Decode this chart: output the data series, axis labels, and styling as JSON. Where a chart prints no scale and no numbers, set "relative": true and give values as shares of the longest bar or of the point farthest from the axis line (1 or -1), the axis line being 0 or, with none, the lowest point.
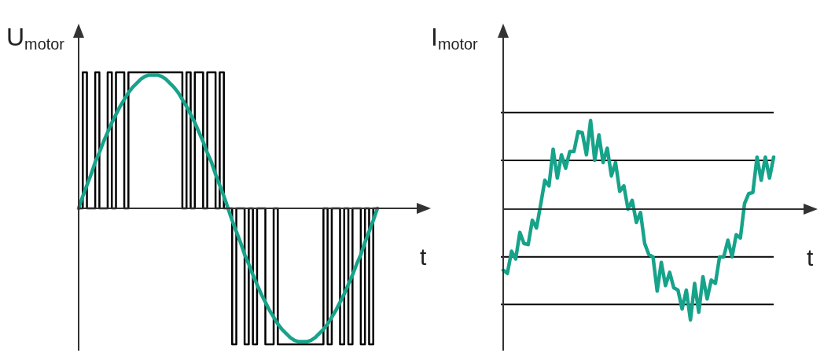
{
  "chart_data": [
    {
      "type": "line",
      "relative": true,
      "ylabel": "U$_{motor}$",
      "xlabel": "t",
      "categories": [
        null,
        null,
        null,
        null,
        null,
        null,
        null,
        null,
        null,
        null,
        null,
        null,
        null,
        null,
        null,
        null,
        null,
        null,
        null,
        null,
        null,
        null,
        null,
        null,
        null,
        null,
        null,
        null,
        null,
        null,
        null,
        null,
        null,
        null,
        null,
        null,
        null,
        null,
        null,
        null,
        null,
        null,
        null,
        null,
        null,
        null,
        null,
        null,
        null,
        null,
        null,
        null,
        null,
        null,
        null,
        null,
        null,
        null,
        null,
        null,
        null,
        null,
        null,
        null,
        null,
        null,
        null,
        null,
        null,
        null,
        null,
        null,
        null
      ],
      "series": [
        {
          "type": "step",
          "color": "#000000",
          "values": [
            0,
            1,
            0,
            0,
            1,
            0,
            0,
            1,
            0,
            1,
            1,
            0,
            1,
            1,
            1,
            1,
            1,
            1,
            1,
            1,
            1,
            1,
            1,
            1,
            1,
            0,
            1,
            0,
            1,
            1,
            0,
            1,
            1,
            0,
            1,
            0,
            0,
            -1,
            0,
            0,
            -1,
            0,
            -1,
            0,
            0,
            -1,
            -1,
            0,
            -1,
            -1,
            -1,
            -1,
            -1,
            -1,
            -1,
            -1,
            -1,
            -1,
            -1,
            0,
            -1,
            0,
            0,
            -1,
            0,
            -1,
            0,
            0,
            -1,
            0,
            -1,
            0,
            0
          ]
        },
        {
          "color": "#17a38a",
          "values": [
            0,
            0.09,
            0.17,
            0.25,
            0.34,
            0.41,
            0.49,
            0.56,
            0.63,
            0.69,
            0.75,
            0.8,
            0.85,
            0.89,
            0.92,
            0.95,
            0.97,
            0.98,
            0.98,
            0.98,
            0.97,
            0.95,
            0.92,
            0.89,
            0.85,
            0.8,
            0.75,
            0.69,
            0.63,
            0.56,
            0.49,
            0.41,
            0.34,
            0.25,
            0.17,
            0.09,
            0,
            -0.09,
            -0.17,
            -0.25,
            -0.34,
            -0.41,
            -0.49,
            -0.56,
            -0.63,
            -0.69,
            -0.75,
            -0.8,
            -0.85,
            -0.89,
            -0.92,
            -0.95,
            -0.97,
            -0.98,
            -0.98,
            -0.98,
            -0.97,
            -0.95,
            -0.92,
            -0.89,
            -0.85,
            -0.8,
            -0.75,
            -0.69,
            -0.63,
            -0.56,
            -0.49,
            -0.41,
            -0.34,
            -0.25,
            -0.17,
            -0.09,
            0
          ]
        }
      ]
    },
    {
      "type": "line",
      "relative": true,
      "ylabel": "I$_{motor}$",
      "xlabel": "t",
      "categories": [
        null,
        null,
        null,
        null,
        null,
        null,
        null,
        null,
        null,
        null,
        null,
        null,
        null,
        null,
        null,
        null,
        null,
        null,
        null,
        null,
        null,
        null,
        null,
        null,
        null,
        null,
        null,
        null,
        null,
        null,
        null,
        null,
        null,
        null,
        null,
        null,
        null,
        null,
        null,
        null,
        null,
        null,
        null,
        null,
        null,
        null,
        null,
        null,
        null,
        null,
        null,
        null,
        null,
        null,
        null,
        null,
        null,
        null,
        null,
        null,
        null,
        null,
        null,
        null,
        null,
        null
      ],
      "ref_lines": [
        {
          "axis": "y",
          "value": 0.87,
          "color": "#000000"
        },
        {
          "axis": "y",
          "value": 0.44,
          "color": "#000000"
        },
        {
          "axis": "y",
          "value": -0.43,
          "color": "#000000"
        },
        {
          "axis": "y",
          "value": -0.86,
          "color": "#000000"
        }
      ],
      "series": [
        {
          "color": "#17a38a",
          "values": [
            -0.55,
            -0.58,
            -0.38,
            -0.45,
            -0.21,
            -0.31,
            -0.32,
            -0.1,
            -0.17,
            0.04,
            0.26,
            0.21,
            0.54,
            0.28,
            0.49,
            0.37,
            0.52,
            0.52,
            0.7,
            0.69,
            0.49,
            0.8,
            0.44,
            0.67,
            0.42,
            0.55,
            0.3,
            0.42,
            0.16,
            0.21,
            0,
            0.08,
            -0.12,
            -0.03,
            -0.31,
            -0.41,
            -0.43,
            -0.74,
            -0.48,
            -0.69,
            -0.57,
            -0.71,
            -0.73,
            -0.9,
            -0.73,
            -1,
            -0.67,
            -0.93,
            -0.61,
            -0.81,
            -0.64,
            -0.67,
            -0.43,
            -0.43,
            -0.28,
            -0.43,
            -0.23,
            -0.26,
            0.05,
            0.14,
            0.15,
            0.47,
            0.26,
            0.47,
            0.28,
            0.47
          ]
        }
      ]
    }
  ]
}
